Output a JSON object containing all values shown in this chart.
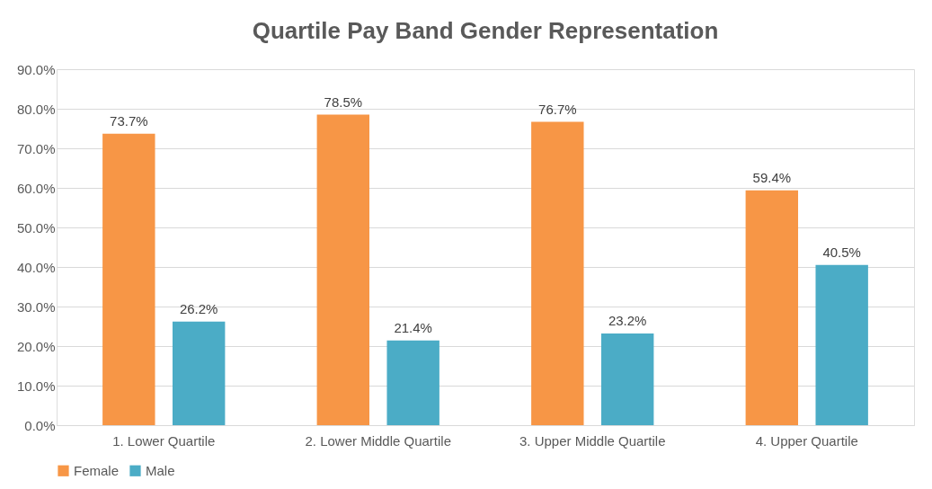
{
  "chart_data": {
    "type": "bar",
    "title": "Quartile Pay Band Gender Representation",
    "categories": [
      "1. Lower Quartile",
      "2. Lower Middle Quartile",
      "3. Upper Middle Quartile",
      "4. Upper Quartile"
    ],
    "series": [
      {
        "name": "Female",
        "color": "#f79646",
        "values": [
          73.7,
          78.5,
          76.7,
          59.4
        ],
        "value_labels": [
          "73.7%",
          "78.5%",
          "76.7%",
          "59.4%"
        ]
      },
      {
        "name": "Male",
        "color": "#4bacc6",
        "values": [
          26.2,
          21.4,
          23.2,
          40.5
        ],
        "value_labels": [
          "26.2%",
          "21.4%",
          "23.2%",
          "40.5%"
        ]
      }
    ],
    "ylim": [
      0,
      90
    ],
    "yticks": [
      {
        "value": 0,
        "label": "0.0%"
      },
      {
        "value": 10,
        "label": "10.0%"
      },
      {
        "value": 20,
        "label": "20.0%"
      },
      {
        "value": 30,
        "label": "30.0%"
      },
      {
        "value": 40,
        "label": "40.0%"
      },
      {
        "value": 50,
        "label": "50.0%"
      },
      {
        "value": 60,
        "label": "60.0%"
      },
      {
        "value": 70,
        "label": "70.0%"
      },
      {
        "value": 80,
        "label": "80.0%"
      },
      {
        "value": 90,
        "label": "90.0%"
      }
    ],
    "grid": "y",
    "legend": "bottom"
  }
}
